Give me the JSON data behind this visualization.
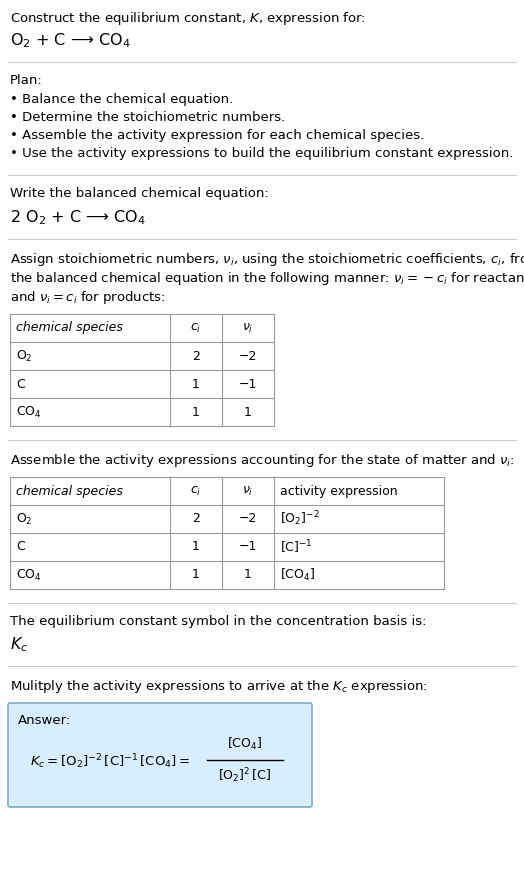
{
  "bg_color": "#ffffff",
  "text_color": "#000000",
  "table_border": "#999999",
  "answer_bg": "#d8eeff",
  "answer_border": "#7aabcc",
  "figsize": [
    5.24,
    8.91
  ],
  "dpi": 100,
  "section1_title": "Construct the equilibrium constant, $K$, expression for:",
  "section1_reaction": "$\\mathrm{O_2}$ + C ⟶ $\\mathrm{CO_4}$",
  "section2_title": "Plan:",
  "section2_bullets": [
    "• Balance the chemical equation.",
    "• Determine the stoichiometric numbers.",
    "• Assemble the activity expression for each chemical species.",
    "• Use the activity expressions to build the equilibrium constant expression."
  ],
  "section3_title": "Write the balanced chemical equation:",
  "section3_reaction": "2 $\\mathrm{O_2}$ + C ⟶ $\\mathrm{CO_4}$",
  "section4_text_line1": "Assign stoichiometric numbers, $\\nu_i$, using the stoichiometric coefficients, $c_i$, from",
  "section4_text_line2": "the balanced chemical equation in the following manner: $\\nu_i = -c_i$ for reactants",
  "section4_text_line3": "and $\\nu_i = c_i$ for products:",
  "table1_headers": [
    "chemical species",
    "$c_i$",
    "$\\nu_i$"
  ],
  "table1_rows": [
    [
      "$\\mathrm{O_2}$",
      "2",
      "−2"
    ],
    [
      "C",
      "1",
      "−1"
    ],
    [
      "$\\mathrm{CO_4}$",
      "1",
      "1"
    ]
  ],
  "section5_title": "Assemble the activity expressions accounting for the state of matter and $\\nu_i$:",
  "table2_headers": [
    "chemical species",
    "$c_i$",
    "$\\nu_i$",
    "activity expression"
  ],
  "table2_rows": [
    [
      "$\\mathrm{O_2}$",
      "2",
      "−2",
      "$[\\mathrm{O_2}]^{-2}$"
    ],
    [
      "C",
      "1",
      "−1",
      "$[\\mathrm{C}]^{-1}$"
    ],
    [
      "$\\mathrm{CO_4}$",
      "1",
      "1",
      "$[\\mathrm{CO_4}]$"
    ]
  ],
  "section6_text": "The equilibrium constant symbol in the concentration basis is:",
  "section6_symbol": "$K_c$",
  "section7_text": "Mulitply the activity expressions to arrive at the $K_c$ expression:",
  "answer_label": "Answer:",
  "answer_eq_left": "$K_c = [\\mathrm{O_2}]^{-2}\\,[\\mathrm{C}]^{-1}\\,[\\mathrm{CO_4}] = $",
  "answer_numerator": "$[\\mathrm{CO_4}]$",
  "answer_denominator": "$[\\mathrm{O_2}]^2\\,[\\mathrm{C}]$"
}
